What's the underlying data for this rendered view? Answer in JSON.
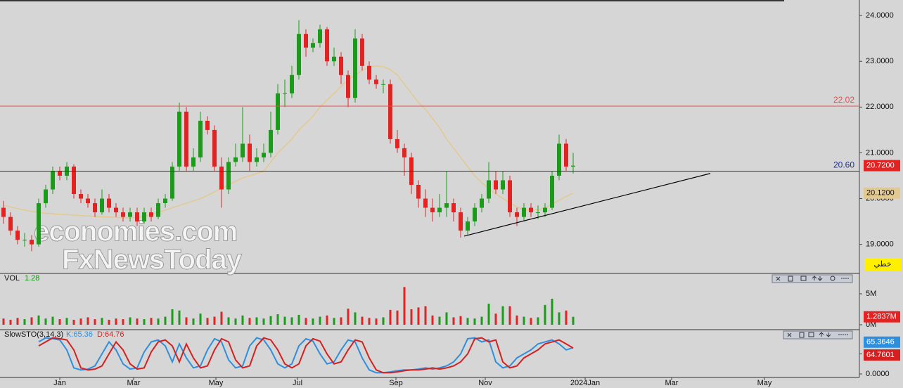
{
  "chart_data": [
    {
      "type": "candlestick",
      "candles": [
        [
          19.8,
          19.95,
          19.45,
          19.6
        ],
        [
          19.6,
          19.7,
          19.2,
          19.3
        ],
        [
          19.3,
          19.4,
          19.0,
          19.1
        ],
        [
          19.1,
          19.25,
          18.95,
          19.1
        ],
        [
          19.1,
          19.2,
          18.85,
          19.0
        ],
        [
          19.0,
          20.0,
          18.95,
          19.9
        ],
        [
          19.9,
          20.3,
          19.8,
          20.2
        ],
        [
          20.2,
          20.7,
          20.1,
          20.6
        ],
        [
          20.6,
          20.7,
          20.4,
          20.5
        ],
        [
          20.5,
          20.8,
          20.4,
          20.7
        ],
        [
          20.7,
          20.75,
          20.0,
          20.1
        ],
        [
          20.1,
          20.2,
          19.9,
          20.0
        ],
        [
          20.0,
          20.1,
          19.8,
          19.9
        ],
        [
          19.9,
          20.0,
          19.6,
          19.7
        ],
        [
          19.7,
          20.2,
          19.65,
          20.0
        ],
        [
          20.0,
          20.1,
          19.7,
          19.8
        ],
        [
          19.8,
          19.9,
          19.6,
          19.7
        ],
        [
          19.7,
          19.8,
          19.5,
          19.6
        ],
        [
          19.6,
          19.8,
          19.5,
          19.7
        ],
        [
          19.7,
          19.8,
          19.4,
          19.5
        ],
        [
          19.5,
          19.8,
          19.45,
          19.7
        ],
        [
          19.7,
          19.8,
          19.5,
          19.6
        ],
        [
          19.6,
          20.0,
          19.55,
          19.9
        ],
        [
          19.9,
          20.1,
          19.8,
          20.0
        ],
        [
          20.0,
          20.8,
          19.95,
          20.7
        ],
        [
          20.7,
          22.1,
          20.6,
          21.9
        ],
        [
          21.9,
          22.0,
          20.6,
          20.7
        ],
        [
          20.7,
          21.1,
          20.6,
          20.9
        ],
        [
          20.9,
          21.9,
          20.8,
          21.7
        ],
        [
          21.7,
          21.8,
          21.4,
          21.5
        ],
        [
          21.5,
          21.6,
          20.6,
          20.7
        ],
        [
          20.7,
          20.9,
          19.8,
          20.2
        ],
        [
          20.2,
          20.9,
          20.1,
          20.8
        ],
        [
          20.8,
          21.2,
          20.7,
          20.9
        ],
        [
          20.9,
          22.0,
          20.8,
          21.2
        ],
        [
          21.2,
          21.4,
          20.6,
          20.8
        ],
        [
          20.8,
          21.1,
          20.7,
          20.9
        ],
        [
          20.9,
          21.2,
          20.8,
          21.0
        ],
        [
          21.0,
          21.9,
          20.9,
          21.5
        ],
        [
          21.5,
          22.5,
          21.4,
          22.3
        ],
        [
          22.3,
          22.6,
          22.0,
          22.3
        ],
        [
          22.3,
          22.9,
          22.2,
          22.7
        ],
        [
          22.7,
          23.9,
          22.6,
          23.6
        ],
        [
          23.6,
          23.7,
          23.1,
          23.3
        ],
        [
          23.3,
          23.5,
          23.2,
          23.4
        ],
        [
          23.4,
          23.8,
          23.3,
          23.7
        ],
        [
          23.7,
          23.75,
          22.9,
          23.0
        ],
        [
          23.0,
          23.3,
          22.9,
          23.1
        ],
        [
          23.1,
          23.2,
          22.5,
          22.7
        ],
        [
          22.7,
          22.8,
          22.0,
          22.2
        ],
        [
          22.2,
          23.7,
          22.1,
          23.5
        ],
        [
          23.5,
          23.6,
          22.8,
          22.9
        ],
        [
          22.9,
          23.0,
          22.5,
          22.6
        ],
        [
          22.6,
          22.7,
          22.4,
          22.5
        ],
        [
          22.5,
          22.6,
          22.3,
          22.5
        ],
        [
          22.5,
          22.6,
          21.2,
          21.3
        ],
        [
          21.3,
          21.5,
          21.0,
          21.1
        ],
        [
          21.1,
          21.2,
          20.5,
          20.9
        ],
        [
          20.9,
          21.0,
          20.1,
          20.3
        ],
        [
          20.3,
          20.4,
          19.8,
          20.0
        ],
        [
          20.0,
          20.2,
          19.6,
          19.8
        ],
        [
          19.8,
          20.0,
          19.5,
          19.7
        ],
        [
          19.7,
          20.1,
          19.6,
          19.8
        ],
        [
          19.8,
          20.6,
          19.6,
          19.9
        ],
        [
          19.9,
          20.0,
          19.5,
          19.7
        ],
        [
          19.7,
          19.8,
          19.15,
          19.3
        ],
        [
          19.3,
          19.6,
          19.2,
          19.5
        ],
        [
          19.5,
          19.9,
          19.4,
          19.8
        ],
        [
          19.8,
          20.1,
          19.7,
          20.0
        ],
        [
          20.0,
          20.8,
          19.9,
          20.4
        ],
        [
          20.4,
          20.6,
          20.1,
          20.2
        ],
        [
          20.2,
          20.6,
          20.1,
          20.4
        ],
        [
          20.4,
          20.5,
          19.6,
          19.7
        ],
        [
          19.7,
          19.8,
          19.4,
          19.6
        ],
        [
          19.6,
          19.9,
          19.5,
          19.8
        ],
        [
          19.8,
          19.9,
          19.6,
          19.7
        ],
        [
          19.7,
          19.85,
          19.55,
          19.7
        ],
        [
          19.7,
          19.9,
          19.6,
          19.8
        ],
        [
          19.8,
          20.6,
          19.75,
          20.5
        ],
        [
          20.5,
          21.4,
          20.4,
          21.2
        ],
        [
          21.2,
          21.3,
          20.6,
          20.7
        ],
        [
          20.7,
          21.0,
          20.55,
          20.72
        ]
      ],
      "up_color": "#1a9c1a",
      "down_color": "#e32222",
      "ma": {
        "color": "#e3c98f",
        "values": [
          19.85,
          19.82,
          19.78,
          19.75,
          19.72,
          19.7,
          19.68,
          19.67,
          19.66,
          19.65,
          19.64,
          19.63,
          19.62,
          19.61,
          19.6,
          19.6,
          19.59,
          19.58,
          19.58,
          19.59,
          19.62,
          19.65,
          19.7,
          19.75,
          19.8,
          19.85,
          19.9,
          19.95,
          20.0,
          20.07,
          20.15,
          20.22,
          20.3,
          20.38,
          20.45,
          20.5,
          20.55,
          20.6,
          20.8,
          21.0,
          21.15,
          21.3,
          21.5,
          21.65,
          21.8,
          22.0,
          22.15,
          22.3,
          22.45,
          22.6,
          22.7,
          22.8,
          22.88,
          22.9,
          22.88,
          22.82,
          22.7,
          22.5,
          22.3,
          22.1,
          21.95,
          21.75,
          21.55,
          21.3,
          21.1,
          20.9,
          20.7,
          20.5,
          20.35,
          20.22,
          20.1,
          20.0,
          19.9,
          19.82,
          19.76,
          19.74,
          19.76,
          19.8,
          19.88,
          19.96,
          20.05,
          20.12
        ]
      },
      "hlines": [
        {
          "value": 22.02,
          "label": "22.02",
          "color": "#e05050"
        },
        {
          "value": 20.6,
          "label": "20.60",
          "color": "#1f2f8f"
        }
      ],
      "trendline": {
        "color": "#000000",
        "x": [
          65.5,
          100.5
        ],
        "y": [
          19.18,
          20.55
        ]
      },
      "ylim": [
        18.38,
        24.34
      ],
      "yticks": [
        {
          "value": 24,
          "label": "24.0000"
        },
        {
          "value": 23,
          "label": "23.0000"
        },
        {
          "value": 22,
          "label": "22.0000"
        },
        {
          "value": 21,
          "label": "21.0000"
        },
        {
          "value": 20,
          "label": "20.0000"
        },
        {
          "value": 19,
          "label": "19.0000"
        }
      ],
      "xlim": [
        -0.5,
        121.7
      ],
      "xticks": [
        {
          "value": 8,
          "label": "Jan"
        },
        {
          "value": 18.5,
          "label": "Mar"
        },
        {
          "value": 30.2,
          "label": "May"
        },
        {
          "value": 41.8,
          "label": "Jul"
        },
        {
          "value": 55.8,
          "label": "Sep"
        },
        {
          "value": 68.5,
          "label": "Nov"
        },
        {
          "value": 82.7,
          "label": "2024Jan"
        },
        {
          "value": 95,
          "label": "Mar"
        },
        {
          "value": 108.2,
          "label": "May"
        }
      ],
      "last_price": {
        "value": 20.72,
        "label": "20.7200"
      },
      "ma_last": {
        "value": 20.12,
        "label": "20.1200"
      },
      "button": "خطي",
      "watermark": [
        "economies.com",
        "FxNewsToday"
      ]
    },
    {
      "type": "bar",
      "title": "VOL",
      "legend_value": "1.28",
      "values": [
        1.0,
        0.8,
        1.1,
        0.9,
        1.2,
        1.5,
        1.0,
        1.3,
        0.9,
        1.1,
        0.8,
        1.0,
        1.2,
        0.9,
        1.1,
        0.8,
        1.0,
        0.9,
        1.2,
        1.0,
        0.9,
        1.1,
        1.0,
        1.3,
        2.5,
        2.3,
        1.2,
        1.0,
        1.8,
        1.1,
        1.3,
        2.1,
        1.2,
        1.0,
        1.5,
        1.1,
        1.2,
        1.0,
        1.4,
        1.7,
        1.3,
        1.2,
        1.6,
        1.1,
        1.0,
        1.3,
        1.5,
        1.1,
        1.2,
        2.6,
        2.0,
        1.3,
        1.1,
        1.0,
        1.2,
        2.4,
        2.3,
        6.1,
        2.5,
        2.8,
        3.0,
        1.5,
        1.3,
        2.0,
        1.2,
        1.4,
        1.1,
        1.0,
        1.3,
        3.4,
        1.8,
        3.0,
        3.0,
        1.5,
        1.3,
        1.1,
        1.2,
        3.2,
        4.2,
        2.0,
        2.3,
        1.2837
      ],
      "ylim": [
        -0.68,
        8.18
      ],
      "yticks": [
        {
          "value": 0,
          "label": "0M"
        },
        {
          "value": 5,
          "label": "5M"
        }
      ],
      "last": {
        "value": 1.2837,
        "label": "1.2837M"
      }
    },
    {
      "type": "line",
      "title": "SlowSTO(3,14,3)",
      "series": [
        {
          "label": "K:65.36",
          "color": "#2d8fe0",
          "last": 65.3646,
          "values": [
            null,
            null,
            null,
            null,
            null,
            80,
            90,
            88,
            85,
            60,
            15,
            10,
            12,
            20,
            50,
            80,
            60,
            25,
            12,
            15,
            55,
            80,
            85,
            70,
            30,
            75,
            40,
            15,
            20,
            60,
            88,
            80,
            35,
            15,
            20,
            70,
            90,
            85,
            60,
            25,
            15,
            25,
            70,
            88,
            82,
            50,
            25,
            30,
            60,
            85,
            80,
            40,
            10,
            3,
            3,
            5,
            8,
            10,
            10,
            12,
            15,
            12,
            15,
            20,
            30,
            50,
            88,
            90,
            80,
            85,
            30,
            15,
            20,
            40,
            50,
            60,
            75,
            80,
            85,
            75,
            60,
            65.36
          ]
        },
        {
          "label": "D:64.76",
          "color": "#d42020",
          "last": 64.7601,
          "values": [
            null,
            null,
            null,
            null,
            null,
            70,
            80,
            90,
            88,
            85,
            60,
            15,
            10,
            12,
            20,
            50,
            80,
            60,
            25,
            12,
            15,
            55,
            80,
            85,
            70,
            30,
            75,
            40,
            15,
            20,
            60,
            88,
            80,
            35,
            15,
            20,
            70,
            90,
            85,
            60,
            25,
            15,
            25,
            70,
            88,
            82,
            50,
            25,
            30,
            60,
            85,
            80,
            40,
            10,
            3,
            3,
            5,
            8,
            10,
            10,
            12,
            15,
            12,
            15,
            20,
            30,
            50,
            88,
            90,
            80,
            85,
            30,
            15,
            20,
            40,
            50,
            60,
            75,
            80,
            85,
            75,
            64.76
          ]
        }
      ],
      "ylim": [
        -8.8,
        108.8
      ],
      "yticks": [
        {
          "value": 0,
          "label": "0.0000"
        },
        {
          "value": 50,
          "label": "50.0000"
        }
      ]
    }
  ]
}
